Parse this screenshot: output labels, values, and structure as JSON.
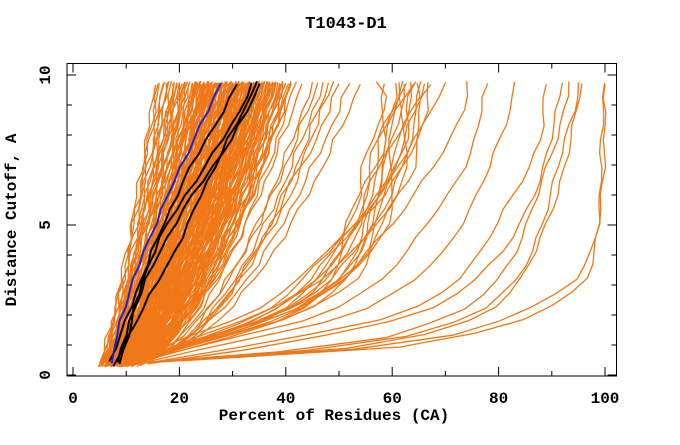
{
  "chart_data": {
    "type": "line",
    "title": "T1043-D1",
    "xlabel": "Percent of Residues (CA)",
    "ylabel": "Distance Cutoff, A",
    "xlim": [
      -1,
      102
    ],
    "ylim": [
      0,
      10.4
    ],
    "x_ticks": [
      0,
      10,
      20,
      30,
      40,
      50,
      60,
      70,
      80,
      90,
      100
    ],
    "x_major_ticks": [
      0,
      20,
      40,
      60,
      80,
      100
    ],
    "x_tick_labels": [
      "0",
      "20",
      "40",
      "60",
      "80",
      "100"
    ],
    "y_ticks": [
      0,
      1,
      2,
      3,
      4,
      5,
      6,
      7,
      8,
      9,
      10
    ],
    "y_major_ticks": [
      0,
      5,
      10
    ],
    "y_tick_labels": [
      "0",
      "5",
      "10"
    ],
    "grid": false,
    "legend": null,
    "colors": {
      "orange": "#F07818",
      "black": "#000000",
      "blue": "#2222CC"
    },
    "y_grid": [
      0.4,
      1,
      2,
      3,
      4,
      5,
      6,
      7,
      8,
      9,
      9.75
    ],
    "jitter": 0.38,
    "cluster_curves_endpoints": [
      [
        4.8,
        15.5
      ],
      [
        5,
        17
      ],
      [
        5.2,
        19
      ],
      [
        5.5,
        16
      ],
      [
        5.7,
        21
      ],
      [
        5.9,
        18
      ],
      [
        6,
        23
      ],
      [
        6.2,
        20
      ],
      [
        6.3,
        25
      ],
      [
        6.5,
        17.5
      ],
      [
        6.6,
        22
      ],
      [
        6.8,
        26
      ],
      [
        7,
        19.5
      ],
      [
        7.1,
        24
      ],
      [
        7.2,
        28
      ],
      [
        7.4,
        21
      ],
      [
        7.5,
        26.5
      ],
      [
        7.6,
        30
      ],
      [
        7.8,
        23
      ],
      [
        8,
        27
      ],
      [
        8.1,
        32
      ],
      [
        8.2,
        24.5
      ],
      [
        8.4,
        29
      ],
      [
        8.5,
        34
      ],
      [
        8.6,
        26
      ],
      [
        8.8,
        31
      ],
      [
        9,
        36
      ],
      [
        9.1,
        27.5
      ],
      [
        9.2,
        33
      ],
      [
        9.4,
        38
      ],
      [
        9.5,
        29
      ],
      [
        9.6,
        35
      ],
      [
        9.8,
        40
      ],
      [
        10,
        30
      ],
      [
        10.1,
        36.5
      ],
      [
        10.3,
        32
      ],
      [
        10.5,
        38
      ],
      [
        10.6,
        33.5
      ],
      [
        10.8,
        39.5
      ],
      [
        11,
        35
      ],
      [
        11.2,
        40.5
      ],
      [
        11.5,
        36
      ],
      [
        11.8,
        41
      ],
      [
        12.1,
        37
      ],
      [
        12.5,
        42
      ],
      [
        13,
        39
      ],
      [
        5.1,
        16.2
      ],
      [
        5.4,
        18.5
      ],
      [
        5.8,
        20
      ],
      [
        6.1,
        21.5
      ],
      [
        6.4,
        19
      ],
      [
        6.7,
        23.5
      ],
      [
        7.0,
        25.5
      ],
      [
        7.3,
        22.5
      ],
      [
        7.7,
        27.5
      ],
      [
        8.0,
        24
      ],
      [
        8.3,
        30.5
      ],
      [
        8.6,
        28
      ],
      [
        8.9,
        25.5
      ],
      [
        9.2,
        31
      ],
      [
        9.5,
        37
      ],
      [
        9.9,
        33.5
      ],
      [
        10.2,
        29.5
      ],
      [
        10.4,
        34.5
      ],
      [
        10.7,
        31.5
      ],
      [
        11.1,
        37.5
      ],
      [
        11.4,
        33
      ],
      [
        11.7,
        38.5
      ],
      [
        12.0,
        34.5
      ],
      [
        12.3,
        40
      ],
      [
        12.7,
        36.5
      ],
      [
        13.2,
        41
      ],
      [
        6.9,
        24.7
      ],
      [
        7.8,
        29
      ],
      [
        8.7,
        32.5
      ],
      [
        9.3,
        34.2
      ],
      [
        10.0,
        35.8
      ],
      [
        10.9,
        38.8
      ],
      [
        7.2,
        26.2
      ],
      [
        6.6,
        20.8
      ],
      [
        5.6,
        17.8
      ],
      [
        8.9,
        35
      ],
      [
        6.1,
        18.8
      ],
      [
        6.4,
        21.2
      ],
      [
        6.7,
        24.2
      ],
      [
        7.0,
        27.2
      ],
      [
        7.3,
        23.8
      ],
      [
        7.6,
        28.8
      ],
      [
        7.9,
        25.8
      ],
      [
        8.2,
        31.2
      ],
      [
        8.5,
        27.2
      ],
      [
        8.8,
        33.2
      ],
      [
        9.1,
        29.2
      ],
      [
        9.4,
        35.2
      ],
      [
        9.7,
        31.2
      ],
      [
        10.0,
        37.2
      ],
      [
        10.3,
        33.2
      ],
      [
        10.6,
        39
      ],
      [
        10.9,
        34.2
      ],
      [
        11.2,
        38.2
      ],
      [
        6.3,
        22.6
      ],
      [
        6.9,
        26.6
      ],
      [
        7.5,
        30.6
      ],
      [
        8.1,
        28.4
      ],
      [
        8.7,
        34.4
      ],
      [
        9.3,
        32.4
      ],
      [
        9.9,
        36.8
      ],
      [
        10.5,
        35.6
      ],
      [
        7.2,
        24.9
      ],
      [
        8.4,
        30.9
      ],
      [
        9.6,
        33.9
      ],
      [
        10.8,
        37.6
      ],
      [
        5.5,
        17.2
      ],
      [
        6.0,
        19.6
      ],
      [
        6.5,
        22.4
      ],
      [
        7.0,
        25.3
      ],
      [
        7.5,
        27.8
      ],
      [
        8.0,
        29.6
      ],
      [
        8.5,
        31.4
      ],
      [
        9.0,
        32.8
      ],
      [
        9.5,
        34.6
      ],
      [
        10.0,
        36.4
      ],
      [
        10.5,
        37.8
      ],
      [
        11.0,
        39.4
      ],
      [
        11.5,
        40.8
      ],
      [
        6.2,
        23.3
      ],
      [
        7.4,
        24.4
      ],
      [
        7.9,
        26.8
      ],
      [
        8.3,
        28.6
      ],
      [
        8.8,
        30.2
      ],
      [
        9.2,
        32.1
      ],
      [
        9.7,
        33.6
      ],
      [
        10.1,
        35.1
      ],
      [
        10.6,
        36.6
      ],
      [
        7.7,
        25.7
      ],
      [
        8.6,
        29.4
      ],
      [
        9.45,
        31.8
      ],
      [
        10.25,
        34.9
      ],
      [
        7.15,
        23.1
      ],
      [
        8.05,
        27.4
      ],
      [
        8.95,
        30.8
      ],
      [
        9.85,
        33.3
      ],
      [
        6.55,
        20.5
      ],
      [
        6.95,
        22.9
      ],
      [
        7.35,
        25.1
      ],
      [
        7.75,
        27.1
      ],
      [
        8.15,
        28.9
      ],
      [
        8.55,
        30.5
      ],
      [
        8.95,
        31.9
      ],
      [
        9.35,
        33.1
      ],
      [
        6.75,
        21.7
      ],
      [
        7.55,
        26.1
      ],
      [
        8.35,
        29.7
      ],
      [
        9.15,
        32.5
      ],
      [
        7.3,
        24.6
      ],
      [
        7.8,
        26.3
      ],
      [
        8.2,
        28.1
      ],
      [
        8.7,
        29.8
      ],
      [
        9.1,
        31.3
      ],
      [
        9.6,
        32.9
      ],
      [
        10.05,
        34.3
      ],
      [
        10.45,
        35.8
      ],
      [
        7.6,
        25.4
      ],
      [
        8.45,
        28.9
      ],
      [
        9.3,
        32.2
      ],
      [
        10.15,
        35.3
      ],
      [
        7.95,
        27.0
      ],
      [
        8.85,
        30.6
      ],
      [
        9,
        43
      ],
      [
        9.5,
        46
      ],
      [
        10,
        49
      ],
      [
        10.5,
        52
      ],
      [
        11,
        45
      ],
      [
        11.5,
        54
      ],
      [
        12,
        48
      ],
      [
        8.5,
        41
      ],
      [
        10.2,
        50
      ],
      [
        11.2,
        47
      ]
    ],
    "curves_orange": [
      [
        8.0,
        19.6,
        35,
        43.5,
        48,
        51,
        53.5,
        55.5,
        57,
        58,
        57
      ],
      [
        8.3,
        20.2,
        36,
        44.5,
        49,
        52,
        54.5,
        56.5,
        58,
        58.7,
        58.5
      ],
      [
        8.5,
        20.7,
        36.8,
        45.3,
        49.8,
        52.8,
        55.3,
        57.3,
        58.8,
        60.3,
        61.3
      ],
      [
        8.6,
        21.1,
        37.5,
        46,
        50.5,
        53.5,
        56,
        58,
        59.5,
        61,
        62
      ],
      [
        8.8,
        21.5,
        38.2,
        46.7,
        51.2,
        54.2,
        56.7,
        58.7,
        60.2,
        61.7,
        62.7
      ],
      [
        9.0,
        22,
        39,
        47.5,
        52,
        55,
        57.5,
        59.5,
        61,
        62.5,
        63.5
      ],
      [
        9.2,
        22.4,
        39.6,
        48.1,
        52.6,
        55.6,
        58.1,
        60.1,
        61.6,
        63.1,
        64.1
      ],
      [
        9.3,
        22.7,
        40.2,
        48.7,
        53.2,
        56.2,
        58.7,
        60.7,
        62.2,
        63.7,
        64.7
      ],
      [
        9.5,
        23.1,
        40.9,
        49.4,
        53.9,
        56.9,
        59.4,
        61.4,
        62.9,
        64.4,
        65.4
      ],
      [
        9.7,
        23.6,
        41.6,
        50.1,
        54.6,
        57.6,
        60.1,
        62.1,
        63.6,
        65.1,
        66.1
      ],
      [
        9.8,
        23.9,
        42.2,
        50.7,
        55.2,
        58.2,
        60.7,
        62.7,
        64.2,
        65.7,
        66.7
      ],
      [
        10.0,
        24.3,
        42.8,
        51.3,
        55.8,
        58.8,
        61.3,
        63.3,
        64.8,
        66.3,
        67.3
      ],
      [
        8.4,
        20.3,
        36.2,
        44.7,
        49.2,
        52.2,
        54.7,
        56.7,
        58.2,
        59.7,
        60.7
      ],
      [
        9.2,
        22.5,
        39.9,
        48.4,
        52.9,
        55.9,
        58.4,
        60.4,
        61.9,
        63.4,
        64.4
      ],
      [
        8.7,
        21.3,
        37.8,
        46.3,
        50.8,
        53.8,
        56.3,
        58.3,
        59.8,
        61.3,
        62.3
      ],
      [
        10,
        17,
        33,
        42,
        47,
        53,
        58,
        62,
        65.5,
        68.3,
        70
      ],
      [
        11,
        20,
        40,
        50,
        54,
        60,
        64.5,
        68.3,
        71.3,
        73.2,
        74
      ],
      [
        12,
        24,
        47,
        57,
        63,
        66.5,
        70.3,
        73.3,
        75.8,
        77.2,
        78
      ],
      [
        13,
        28,
        54,
        63,
        69,
        72.5,
        76,
        78.8,
        81,
        82.2,
        83
      ],
      [
        14,
        34,
        62,
        71,
        76.5,
        80,
        83,
        85.7,
        87.6,
        88.5,
        89
      ],
      [
        15,
        38,
        66,
        75,
        80.5,
        83.5,
        86.2,
        88.7,
        90.5,
        91.5,
        92
      ],
      [
        12,
        55,
        72,
        79,
        82.8,
        85.4,
        87.5,
        89.3,
        91,
        92.4,
        93.2
      ],
      [
        13,
        60,
        77.5,
        83.8,
        86.8,
        89,
        90.8,
        92.3,
        93.8,
        95,
        95.7
      ],
      [
        12.5,
        58,
        76,
        82.8,
        85.8,
        88,
        89.9,
        91.4,
        92.9,
        94.3,
        95
      ],
      [
        14,
        68,
        87,
        96,
        98.2,
        99,
        99.4,
        99.6,
        99.8,
        99.9,
        100
      ],
      [
        13.5,
        65,
        84,
        94,
        97.3,
        98.5,
        99,
        99.3,
        99.6,
        99.8,
        99.9
      ]
    ],
    "curves_black": [
      [
        6.7,
        8.1,
        10.4,
        12.4,
        14.6,
        17,
        19.5,
        22.3,
        25.5,
        29,
        31
      ],
      [
        8.8,
        9.9,
        11.3,
        12.8,
        14.9,
        17.6,
        21.2,
        25,
        28.6,
        32,
        33.6
      ],
      [
        7.9,
        9.6,
        12.4,
        15.6,
        18.8,
        21.6,
        24,
        26.8,
        29.6,
        32.6,
        34.6
      ],
      [
        8.4,
        9.4,
        11,
        13.3,
        16,
        19,
        22.5,
        26.5,
        30.3,
        33.3,
        35.2
      ]
    ],
    "curve_blue": [
      7.3,
      7.9,
      9.2,
      11,
      13.1,
      15.4,
      17.9,
      20.4,
      23.1,
      25.9,
      27.9
    ]
  }
}
